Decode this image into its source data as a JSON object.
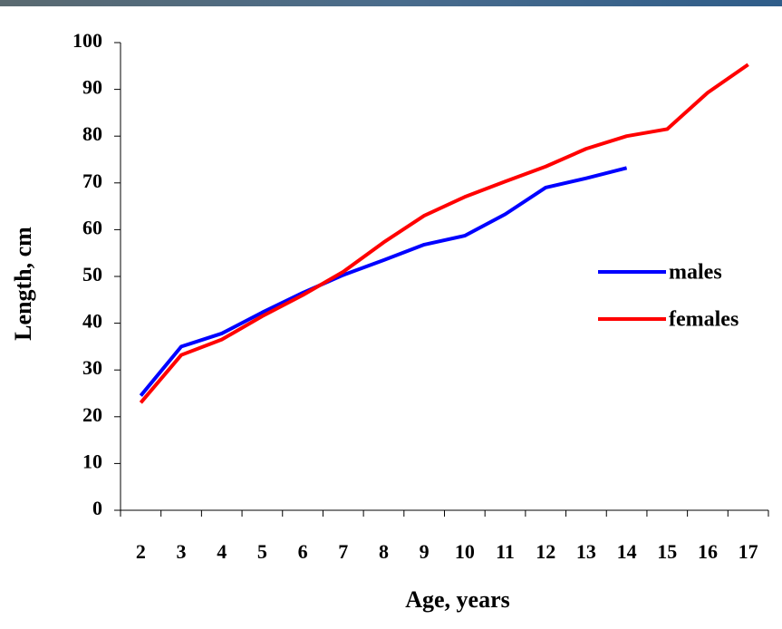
{
  "chart_data": {
    "type": "line",
    "x_label": "Age, years",
    "y_label": "Length, cm",
    "categories": [
      "2",
      "3",
      "4",
      "5",
      "6",
      "7",
      "8",
      "9",
      "10",
      "11",
      "12",
      "13",
      "14",
      "15",
      "16",
      "17"
    ],
    "series": [
      {
        "name": "males",
        "color": "#0000ff",
        "values": [
          24.5,
          35,
          37.8,
          42.3,
          46.5,
          50.3,
          53.5,
          56.8,
          58.7,
          63.3,
          69,
          71,
          73.2,
          null,
          null,
          null
        ]
      },
      {
        "name": "females",
        "color": "#ff0000",
        "values": [
          23,
          33.2,
          36.5,
          41.5,
          46,
          51,
          57.3,
          63,
          67,
          70.3,
          73.5,
          77.3,
          80,
          81.5,
          89.3,
          95.3
        ]
      }
    ],
    "ylim": [
      0,
      100
    ],
    "yticks": [
      0,
      10,
      20,
      30,
      40,
      50,
      60,
      70,
      80,
      90,
      100
    ],
    "legend": "right"
  }
}
